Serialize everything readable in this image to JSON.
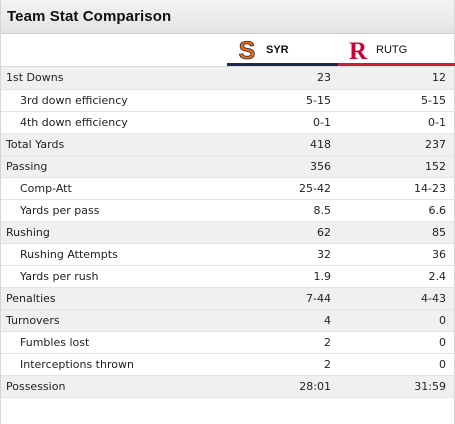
{
  "header": {
    "title": "Team Stat Comparison"
  },
  "teams": [
    {
      "abbr": "SYR",
      "logo_letter": "S",
      "color": "#f76900",
      "underline": "#1a2a56"
    },
    {
      "abbr": "RUTG",
      "logo_letter": "R",
      "color": "#cc0033",
      "underline": "#cc1f30"
    }
  ],
  "rows": [
    {
      "label": "1st Downs",
      "syr": "23",
      "rutg": "12",
      "type": "cat"
    },
    {
      "label": "3rd down efficiency",
      "syr": "5-15",
      "rutg": "5-15",
      "type": "sub"
    },
    {
      "label": "4th down efficiency",
      "syr": "0-1",
      "rutg": "0-1",
      "type": "sub"
    },
    {
      "label": "Total Yards",
      "syr": "418",
      "rutg": "237",
      "type": "cat"
    },
    {
      "label": "Passing",
      "syr": "356",
      "rutg": "152",
      "type": "cat"
    },
    {
      "label": "Comp-Att",
      "syr": "25-42",
      "rutg": "14-23",
      "type": "sub"
    },
    {
      "label": "Yards per pass",
      "syr": "8.5",
      "rutg": "6.6",
      "type": "sub"
    },
    {
      "label": "Rushing",
      "syr": "62",
      "rutg": "85",
      "type": "cat"
    },
    {
      "label": "Rushing Attempts",
      "syr": "32",
      "rutg": "36",
      "type": "sub"
    },
    {
      "label": "Yards per rush",
      "syr": "1.9",
      "rutg": "2.4",
      "type": "sub"
    },
    {
      "label": "Penalties",
      "syr": "7-44",
      "rutg": "4-43",
      "type": "cat"
    },
    {
      "label": "Turnovers",
      "syr": "4",
      "rutg": "0",
      "type": "cat"
    },
    {
      "label": "Fumbles lost",
      "syr": "2",
      "rutg": "0",
      "type": "sub"
    },
    {
      "label": "Interceptions thrown",
      "syr": "2",
      "rutg": "0",
      "type": "sub"
    },
    {
      "label": "Possession",
      "syr": "28:01",
      "rutg": "31:59",
      "type": "cat"
    }
  ]
}
